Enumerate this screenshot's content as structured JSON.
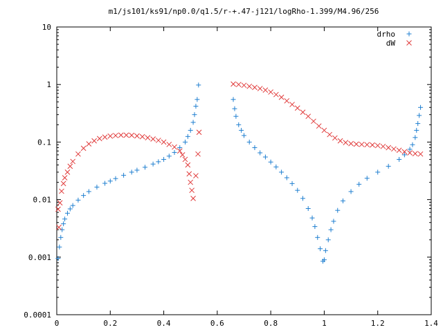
{
  "chart_data": {
    "type": "scatter",
    "title": "m1/js101/ks91/np0.0/q1.5/r-+.47-j121/logRho-1.399/M4.96/256",
    "xlabel": "",
    "ylabel": "",
    "xlim": [
      0,
      1.4
    ],
    "ylim": [
      0.0001,
      10
    ],
    "yscale": "log",
    "grid": false,
    "legend_position": "top-right",
    "x_ticks": [
      {
        "value": 0,
        "label": "0"
      },
      {
        "value": 0.2,
        "label": "0.2"
      },
      {
        "value": 0.4,
        "label": "0.4"
      },
      {
        "value": 0.6,
        "label": "0.6"
      },
      {
        "value": 0.8,
        "label": "0.8"
      },
      {
        "value": 1.0,
        "label": "1"
      },
      {
        "value": 1.2,
        "label": "1.2"
      },
      {
        "value": 1.4,
        "label": "1.4"
      }
    ],
    "y_ticks": [
      {
        "value": 10,
        "label": "10"
      },
      {
        "value": 1,
        "label": "1"
      },
      {
        "value": 0.1,
        "label": "0.1"
      },
      {
        "value": 0.01,
        "label": "0.01"
      },
      {
        "value": 0.001,
        "label": "0.001"
      },
      {
        "value": 0.0001,
        "label": "0.0001"
      }
    ],
    "series": [
      {
        "name": "drho",
        "marker": "plus",
        "color": "#1f7fd0",
        "points": [
          [
            0.005,
            0.00095
          ],
          [
            0.01,
            0.0015
          ],
          [
            0.015,
            0.0022
          ],
          [
            0.02,
            0.003
          ],
          [
            0.025,
            0.0038
          ],
          [
            0.03,
            0.0046
          ],
          [
            0.04,
            0.0058
          ],
          [
            0.05,
            0.0069
          ],
          [
            0.06,
            0.0079
          ],
          [
            0.08,
            0.0098
          ],
          [
            0.1,
            0.0118
          ],
          [
            0.12,
            0.0138
          ],
          [
            0.15,
            0.0165
          ],
          [
            0.18,
            0.0192
          ],
          [
            0.2,
            0.021
          ],
          [
            0.22,
            0.0232
          ],
          [
            0.25,
            0.0265
          ],
          [
            0.28,
            0.03
          ],
          [
            0.3,
            0.0325
          ],
          [
            0.33,
            0.0365
          ],
          [
            0.36,
            0.0415
          ],
          [
            0.38,
            0.0455
          ],
          [
            0.4,
            0.05
          ],
          [
            0.42,
            0.057
          ],
          [
            0.44,
            0.066
          ],
          [
            0.46,
            0.08
          ],
          [
            0.48,
            0.1
          ],
          [
            0.49,
            0.125
          ],
          [
            0.5,
            0.16
          ],
          [
            0.51,
            0.22
          ],
          [
            0.515,
            0.3
          ],
          [
            0.52,
            0.42
          ],
          [
            0.525,
            0.55
          ],
          [
            0.53,
            0.98
          ],
          [
            0.66,
            0.55
          ],
          [
            0.665,
            0.38
          ],
          [
            0.67,
            0.28
          ],
          [
            0.68,
            0.2
          ],
          [
            0.69,
            0.16
          ],
          [
            0.7,
            0.13
          ],
          [
            0.72,
            0.1
          ],
          [
            0.74,
            0.08
          ],
          [
            0.76,
            0.065
          ],
          [
            0.78,
            0.055
          ],
          [
            0.8,
            0.045
          ],
          [
            0.82,
            0.037
          ],
          [
            0.84,
            0.03
          ],
          [
            0.86,
            0.024
          ],
          [
            0.88,
            0.019
          ],
          [
            0.9,
            0.0145
          ],
          [
            0.92,
            0.0105
          ],
          [
            0.94,
            0.007
          ],
          [
            0.955,
            0.0048
          ],
          [
            0.965,
            0.0034
          ],
          [
            0.975,
            0.0022
          ],
          [
            0.985,
            0.0014
          ],
          [
            0.995,
            0.00085
          ],
          [
            1.0,
            0.0009
          ],
          [
            1.005,
            0.0013
          ],
          [
            1.015,
            0.002
          ],
          [
            1.025,
            0.003
          ],
          [
            1.035,
            0.0042
          ],
          [
            1.05,
            0.0065
          ],
          [
            1.07,
            0.0095
          ],
          [
            1.1,
            0.0138
          ],
          [
            1.13,
            0.0185
          ],
          [
            1.16,
            0.0235
          ],
          [
            1.2,
            0.03
          ],
          [
            1.24,
            0.038
          ],
          [
            1.28,
            0.05
          ],
          [
            1.3,
            0.06
          ],
          [
            1.32,
            0.075
          ],
          [
            1.33,
            0.09
          ],
          [
            1.34,
            0.12
          ],
          [
            1.345,
            0.16
          ],
          [
            1.35,
            0.21
          ],
          [
            1.355,
            0.29
          ],
          [
            1.36,
            0.4
          ]
        ]
      },
      {
        "name": "dW",
        "marker": "cross",
        "color": "#e03a3a",
        "points": [
          [
            0.005,
            0.0068
          ],
          [
            0.008,
            0.0033
          ],
          [
            0.012,
            0.0088
          ],
          [
            0.018,
            0.014
          ],
          [
            0.025,
            0.019
          ],
          [
            0.03,
            0.024
          ],
          [
            0.04,
            0.03
          ],
          [
            0.05,
            0.038
          ],
          [
            0.06,
            0.046
          ],
          [
            0.08,
            0.062
          ],
          [
            0.1,
            0.078
          ],
          [
            0.12,
            0.093
          ],
          [
            0.14,
            0.105
          ],
          [
            0.16,
            0.115
          ],
          [
            0.18,
            0.122
          ],
          [
            0.2,
            0.127
          ],
          [
            0.22,
            0.13
          ],
          [
            0.24,
            0.132
          ],
          [
            0.26,
            0.132
          ],
          [
            0.28,
            0.131
          ],
          [
            0.3,
            0.128
          ],
          [
            0.32,
            0.124
          ],
          [
            0.34,
            0.119
          ],
          [
            0.36,
            0.113
          ],
          [
            0.38,
            0.107
          ],
          [
            0.4,
            0.1
          ],
          [
            0.42,
            0.091
          ],
          [
            0.44,
            0.082
          ],
          [
            0.46,
            0.07
          ],
          [
            0.47,
            0.06
          ],
          [
            0.48,
            0.05
          ],
          [
            0.49,
            0.04
          ],
          [
            0.495,
            0.028
          ],
          [
            0.5,
            0.02
          ],
          [
            0.505,
            0.0145
          ],
          [
            0.51,
            0.0105
          ],
          [
            0.52,
            0.026
          ],
          [
            0.528,
            0.062
          ],
          [
            0.532,
            0.148
          ],
          [
            0.66,
            1.02
          ],
          [
            0.68,
            1.0
          ],
          [
            0.7,
            0.97
          ],
          [
            0.72,
            0.93
          ],
          [
            0.74,
            0.89
          ],
          [
            0.76,
            0.85
          ],
          [
            0.78,
            0.8
          ],
          [
            0.8,
            0.74
          ],
          [
            0.82,
            0.67
          ],
          [
            0.84,
            0.6
          ],
          [
            0.86,
            0.52
          ],
          [
            0.88,
            0.45
          ],
          [
            0.9,
            0.39
          ],
          [
            0.92,
            0.33
          ],
          [
            0.94,
            0.28
          ],
          [
            0.96,
            0.23
          ],
          [
            0.98,
            0.19
          ],
          [
            1.0,
            0.16
          ],
          [
            1.02,
            0.135
          ],
          [
            1.04,
            0.118
          ],
          [
            1.06,
            0.105
          ],
          [
            1.08,
            0.098
          ],
          [
            1.1,
            0.094
          ],
          [
            1.12,
            0.092
          ],
          [
            1.14,
            0.091
          ],
          [
            1.16,
            0.09
          ],
          [
            1.18,
            0.089
          ],
          [
            1.2,
            0.087
          ],
          [
            1.22,
            0.084
          ],
          [
            1.24,
            0.08
          ],
          [
            1.26,
            0.076
          ],
          [
            1.28,
            0.072
          ],
          [
            1.3,
            0.068
          ],
          [
            1.32,
            0.065
          ],
          [
            1.34,
            0.063
          ],
          [
            1.36,
            0.062
          ]
        ]
      }
    ]
  }
}
